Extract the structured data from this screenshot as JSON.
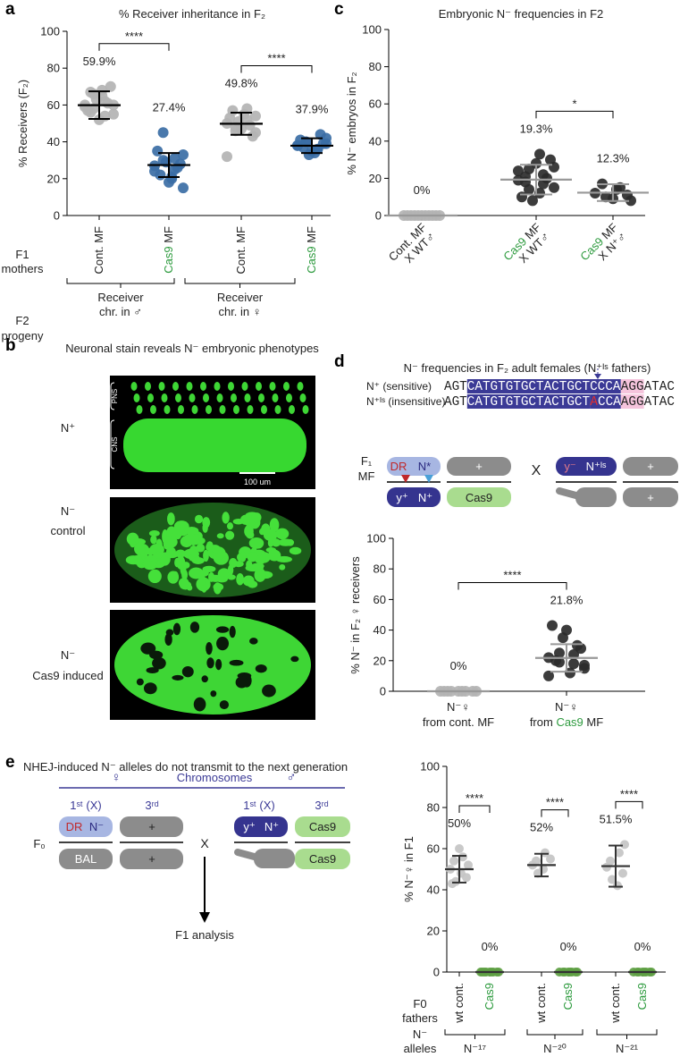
{
  "panel_labels": [
    "a",
    "b",
    "c",
    "d",
    "e"
  ],
  "accent_color": "#2e9b3f",
  "chart_data": [
    {
      "type": "dot",
      "title": "% Receiver inheritance in F₂",
      "ylabel": "% Receivers (F₂)",
      "ylim": [
        0,
        100
      ],
      "yticks": [
        0,
        20,
        40,
        60,
        80,
        100
      ],
      "categories": [
        [
          "Cont. MF"
        ],
        [
          {
            "accent": "Cas9",
            "text": " MF"
          }
        ],
        [
          "Cont. MF"
        ],
        [
          {
            "accent": "Cas9",
            "text": " MF"
          }
        ]
      ],
      "values": [
        59.9,
        27.4,
        49.8,
        37.9
      ],
      "value_labels": [
        "59.9%",
        "27.4%",
        "49.8%",
        "37.9%"
      ],
      "errors": [
        7.5,
        6.5,
        6,
        4
      ],
      "points": [
        [
          60,
          62,
          58,
          55,
          65,
          67,
          70,
          52,
          57,
          61,
          63,
          59,
          54,
          66,
          60,
          68,
          56
        ],
        [
          27,
          25,
          30,
          33,
          20,
          22,
          28,
          18,
          35,
          26,
          29,
          24,
          31,
          45,
          15,
          21
        ],
        [
          50,
          52,
          48,
          45,
          55,
          57,
          43,
          47,
          53,
          49,
          51,
          32,
          58,
          46,
          54
        ],
        [
          38,
          36,
          40,
          42,
          34,
          37,
          39,
          35,
          41,
          44,
          33,
          38,
          36,
          40,
          39
        ]
      ],
      "colors": [
        "#b3b3b3",
        "#3b6ea5",
        "#b3b3b3",
        "#3b6ea5"
      ],
      "line_color": "#000000",
      "comparisons": [
        {
          "pair": [
            0,
            1
          ],
          "label": "****"
        },
        {
          "pair": [
            2,
            3
          ],
          "label": "****"
        }
      ],
      "row_labels": [
        [
          "F1",
          "mothers"
        ],
        [
          "F2",
          "progeny"
        ]
      ],
      "group_labels": [
        [
          "Receiver",
          "chr. in ♂"
        ],
        [
          "Receiver",
          "chr. in ♀"
        ]
      ]
    },
    {
      "type": "dot",
      "title": "Embryonic N⁻ frequencies in F2",
      "ylabel": "% N⁻ embryos in F₂",
      "ylim": [
        0,
        100
      ],
      "yticks": [
        0,
        20,
        40,
        60,
        80,
        100
      ],
      "categories": [
        [
          "Cont. MF",
          "X WT♂"
        ],
        [
          {
            "accent": "Cas9",
            "text": " MF"
          },
          "X WT♂"
        ],
        [
          {
            "accent": "Cas9",
            "text": " MF"
          },
          "X N⁺♂"
        ]
      ],
      "values": [
        0,
        19.3,
        12.3
      ],
      "value_labels": [
        "0%",
        "19.3%",
        "12.3%"
      ],
      "errors": [
        0,
        8,
        4.5
      ],
      "points": [
        [
          0,
          0,
          0,
          0,
          0,
          0,
          0,
          0,
          0,
          0,
          0
        ],
        [
          19,
          22,
          25,
          15,
          12,
          18,
          30,
          28,
          10,
          20,
          8,
          24,
          17,
          14,
          26,
          33,
          21
        ],
        [
          12,
          15,
          10,
          8,
          14,
          17,
          11,
          9
        ]
      ],
      "colors": [
        "#b3b3b3",
        "#2b2b2b",
        "#2b2b2b"
      ],
      "line_color": "#999999",
      "comparisons": [
        {
          "pair": [
            1,
            2
          ],
          "label": "*"
        }
      ]
    },
    {
      "type": "dot",
      "ylabel": "% N⁻ in F₂ ♀ receivers",
      "ylim": [
        0,
        100
      ],
      "yticks": [
        0,
        20,
        40,
        60,
        80,
        100
      ],
      "categories": [
        [
          "N⁻♀",
          "from cont. MF"
        ],
        [
          "N⁻♀",
          {
            "text": "from ",
            "accent": "Cas9",
            "tail": " MF"
          }
        ]
      ],
      "values": [
        0,
        21.8
      ],
      "value_labels": [
        "0%",
        "21.8%"
      ],
      "errors": [
        0,
        9
      ],
      "points": [
        [
          0,
          0,
          0,
          0,
          0,
          0,
          0,
          0,
          0
        ],
        [
          22,
          18,
          25,
          15,
          12,
          20,
          28,
          40,
          43,
          30,
          35,
          10,
          24,
          19,
          17
        ]
      ],
      "colors": [
        "#b3b3b3",
        "#2b2b2b"
      ],
      "line_color": "#999999",
      "comparisons": [
        {
          "pair": [
            0,
            1
          ],
          "label": "****"
        }
      ]
    },
    {
      "type": "dot",
      "ylabel": "% N⁻♀ in F1",
      "ylim": [
        0,
        100
      ],
      "yticks": [
        0,
        20,
        40,
        60,
        80,
        100
      ],
      "categories": [
        [
          "wt cont."
        ],
        [
          {
            "accent": "Cas9"
          }
        ],
        [
          "wt cont."
        ],
        [
          {
            "accent": "Cas9"
          }
        ],
        [
          "wt cont."
        ],
        [
          {
            "accent": "Cas9"
          }
        ]
      ],
      "values": [
        50,
        0,
        52,
        0,
        51.5,
        0
      ],
      "value_labels": [
        "50%",
        "0%",
        "52%",
        "0%",
        "51.5%",
        "0%"
      ],
      "errors": [
        6.5,
        0,
        5.5,
        0,
        10,
        0
      ],
      "points": [
        [
          50,
          56,
          44,
          52,
          48,
          54,
          46,
          60,
          43
        ],
        [
          0,
          0,
          0,
          0,
          0,
          0,
          0,
          0,
          0
        ],
        [
          52,
          58,
          48,
          55,
          50,
          54
        ],
        [
          0,
          0,
          0,
          0,
          0,
          0,
          0,
          0
        ],
        [
          51,
          58,
          45,
          62,
          42,
          54,
          48
        ],
        [
          0,
          0,
          0,
          0,
          0,
          0,
          0,
          0
        ]
      ],
      "colors": [
        "#c4c4c4",
        "#5ea043",
        "#c4c4c4",
        "#5ea043",
        "#c4c4c4",
        "#5ea043"
      ],
      "line_color": "#333333",
      "comparisons": [
        {
          "pair": [
            0,
            1
          ],
          "label": "****"
        },
        {
          "pair": [
            2,
            3
          ],
          "label": "****"
        },
        {
          "pair": [
            4,
            5
          ],
          "label": "****"
        }
      ],
      "row_labels": [
        [
          "F0",
          "fathers"
        ],
        [
          "N⁻",
          "alleles"
        ]
      ],
      "group_labels": [
        [
          "N⁻¹⁷"
        ],
        [
          "N⁻²⁰"
        ],
        [
          "N⁻²¹"
        ]
      ]
    }
  ],
  "panel_b": {
    "title": "Neuronal stain reveals N⁻ embryonic phenotypes",
    "images": [
      {
        "label": [
          "N⁺"
        ]
      },
      {
        "label": [
          "N⁻",
          "control"
        ]
      },
      {
        "label": [
          "N⁻",
          "Cas9 induced"
        ]
      }
    ],
    "regions": [
      "PNS",
      "CNS"
    ],
    "scale_bar": "100 um"
  },
  "panel_d": {
    "title": "N⁻ frequencies in F₂ adult females (N⁺ᴵˢ fathers)",
    "sequences": [
      {
        "label": "N⁺ (sensitive)",
        "segments": [
          {
            "text": "AGT",
            "style": "plain"
          },
          {
            "text": "CATGTGTGCTACTGCTCCCA",
            "style": "box"
          },
          {
            "text": "AGG",
            "style": "pam"
          },
          {
            "text": "ATAC",
            "style": "plain"
          }
        ]
      },
      {
        "label": "N⁺ᴵˢ (insensitive)",
        "segments": [
          {
            "text": "AGT",
            "style": "plain"
          },
          {
            "text": "CATGTGTGCTACTGCT",
            "style": "box"
          },
          {
            "text": "A",
            "style": "mut"
          },
          {
            "text": "CCA",
            "style": "box"
          },
          {
            "text": "AGG",
            "style": "pam"
          },
          {
            "text": "ATAC",
            "style": "plain"
          }
        ]
      }
    ],
    "generation": [
      "F₁",
      "MF"
    ],
    "mother": {
      "x_top": [
        "DR",
        "N*"
      ],
      "third_top": "+",
      "x_bottom": [
        "y⁺",
        "N⁺"
      ],
      "third_bottom": "Cas9"
    },
    "symbol": "X",
    "father": {
      "x_top": [
        "y⁻",
        "N⁺ᴵˢ"
      ],
      "third_top": "+",
      "third_bottom": "+"
    }
  },
  "panel_e": {
    "title": "NHEJ-induced N⁻ alleles do not transmit to the next generation",
    "female": "♀",
    "header": "Chromosomes",
    "male": "♂",
    "columns": [
      "1ˢᵗ (X)",
      "3ʳᵈ",
      "1ˢᵗ (X)",
      "3ʳᵈ"
    ],
    "generation": "F₀",
    "mother": {
      "x_top": [
        "DR",
        "N⁻"
      ],
      "third_top": "+",
      "x_bottom": "BAL",
      "third_bottom": "+"
    },
    "symbol": "X",
    "result": "F1 analysis",
    "father": {
      "x_top": [
        "y⁺",
        "N⁺"
      ],
      "third_top": "Cas9",
      "third_bottom": "Cas9"
    }
  }
}
